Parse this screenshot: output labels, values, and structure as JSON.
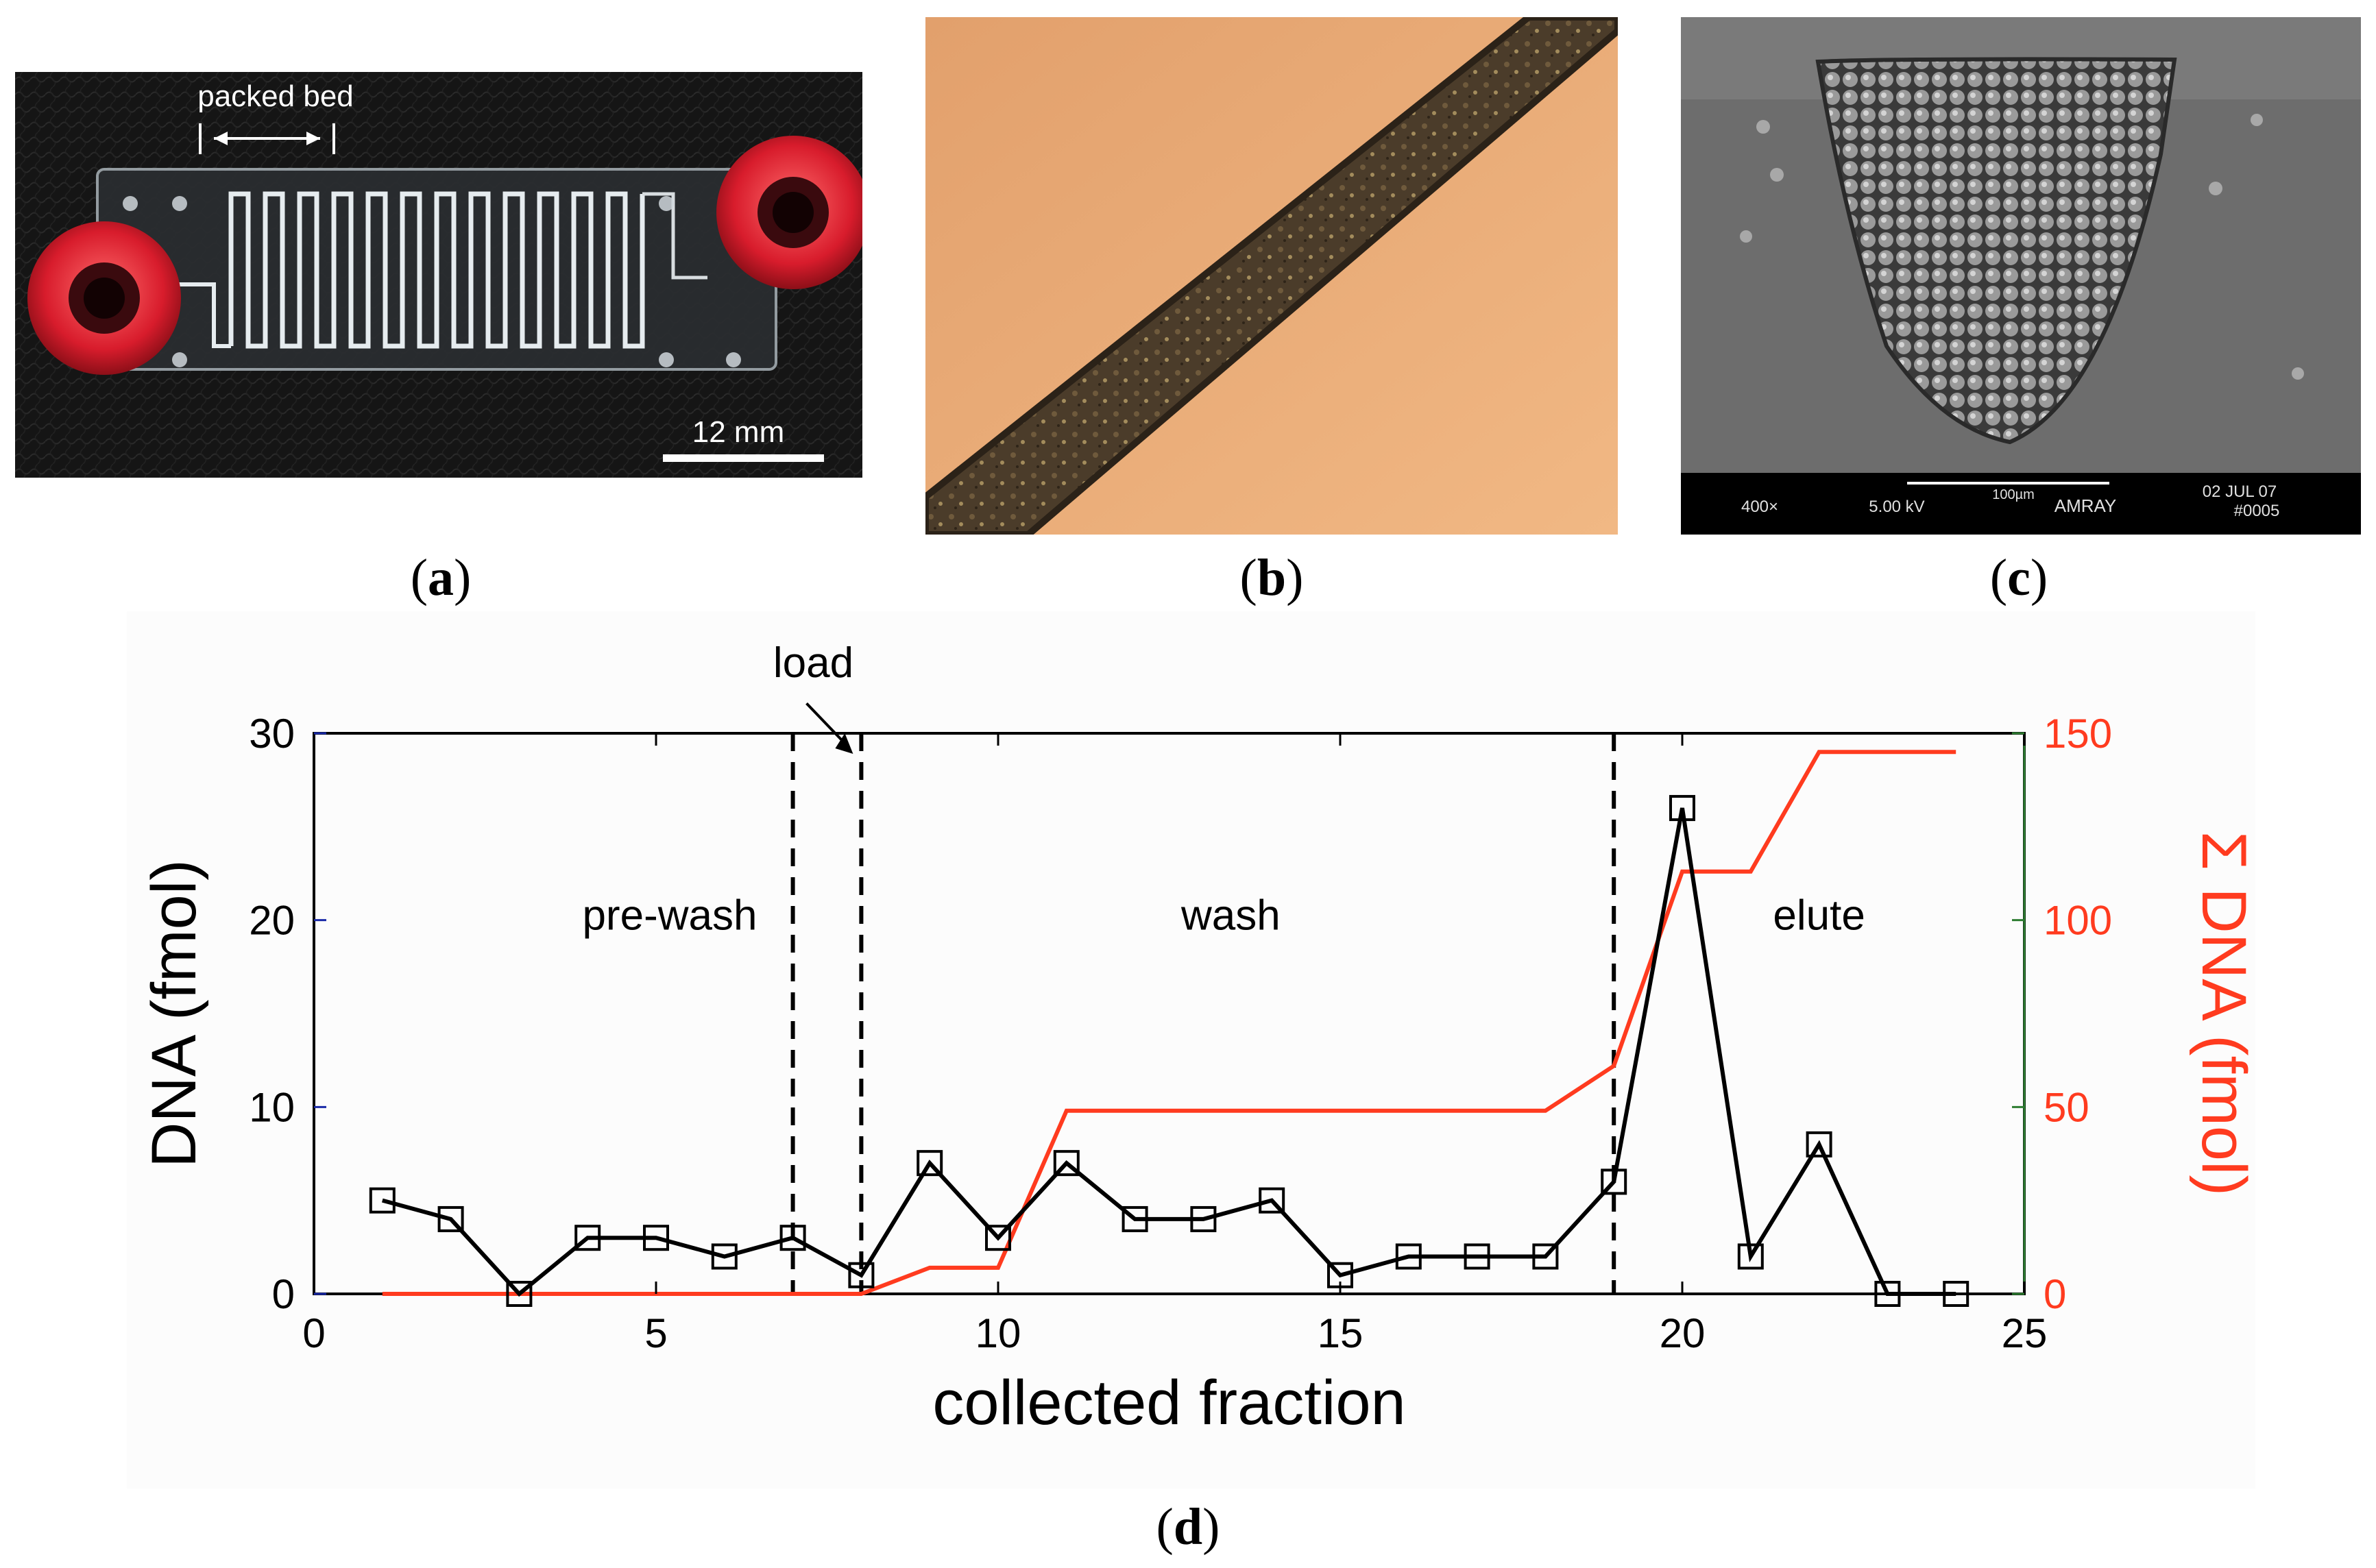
{
  "panels": {
    "a": {
      "caption_open": "(",
      "caption_letter": "a",
      "caption_close": ")",
      "annotation": "packed bed",
      "scale_label": "12 mm"
    },
    "b": {
      "caption_open": "(",
      "caption_letter": "b",
      "caption_close": ")"
    },
    "c": {
      "caption_open": "(",
      "caption_letter": "c",
      "caption_close": ")",
      "sem_mag": "400×",
      "sem_kv": "5.00 kV",
      "sem_scale": "100µm",
      "sem_brand": "AMRAY",
      "sem_date": "02 JUL 07",
      "sem_id": "#0005"
    },
    "d": {
      "caption_open": "(",
      "caption_letter": "d",
      "caption_close": ")"
    }
  },
  "colors": {
    "dna_line": "#000000",
    "sum_line": "#ff3b1f",
    "left_tick": "#1a2aa8",
    "right_axis": "#2e7d32"
  },
  "chart_data": {
    "type": "line",
    "xlabel": "collected fraction",
    "ylabel": "DNA (fmol)",
    "y2label": "Σ DNA (fmol)",
    "xlim": [
      0,
      25
    ],
    "ylim": [
      0,
      30
    ],
    "y2lim": [
      0,
      150
    ],
    "xticks": [
      0,
      5,
      10,
      15,
      20,
      25
    ],
    "yticks": [
      0,
      10,
      20,
      30
    ],
    "y2ticks": [
      0,
      50,
      100,
      150
    ],
    "phase_lines": [
      7,
      8,
      19
    ],
    "phase_labels": [
      {
        "text": "pre-wash",
        "x": 5.2,
        "y": 19.5
      },
      {
        "text": "wash",
        "x": 13.4,
        "y": 19.5
      },
      {
        "text": "elute",
        "x": 22,
        "y": 19.5
      }
    ],
    "annotation": {
      "text": "load",
      "x": 7.6,
      "y": 33
    },
    "series": [
      {
        "name": "DNA (fmol)",
        "axis": "left",
        "marker": "square",
        "x": [
          1,
          2,
          3,
          4,
          5,
          6,
          7,
          8,
          9,
          10,
          11,
          12,
          13,
          14,
          15,
          16,
          17,
          18,
          19,
          20,
          21,
          22,
          23,
          24
        ],
        "values": [
          5,
          4,
          0,
          3,
          3,
          2,
          3,
          1,
          7,
          3,
          7,
          4,
          4,
          5,
          1,
          2,
          2,
          2,
          6,
          26,
          2,
          8,
          0,
          0
        ]
      },
      {
        "name": "Σ DNA (fmol)",
        "axis": "right",
        "marker": "none",
        "x": [
          1,
          8,
          9,
          10,
          11,
          12,
          13,
          14,
          15,
          16,
          17,
          18,
          19,
          20,
          21,
          22,
          23,
          24
        ],
        "values": [
          0,
          0,
          7,
          7,
          49,
          49,
          49,
          49,
          49,
          49,
          49,
          49,
          61,
          113,
          113,
          145,
          145,
          145
        ]
      }
    ]
  }
}
